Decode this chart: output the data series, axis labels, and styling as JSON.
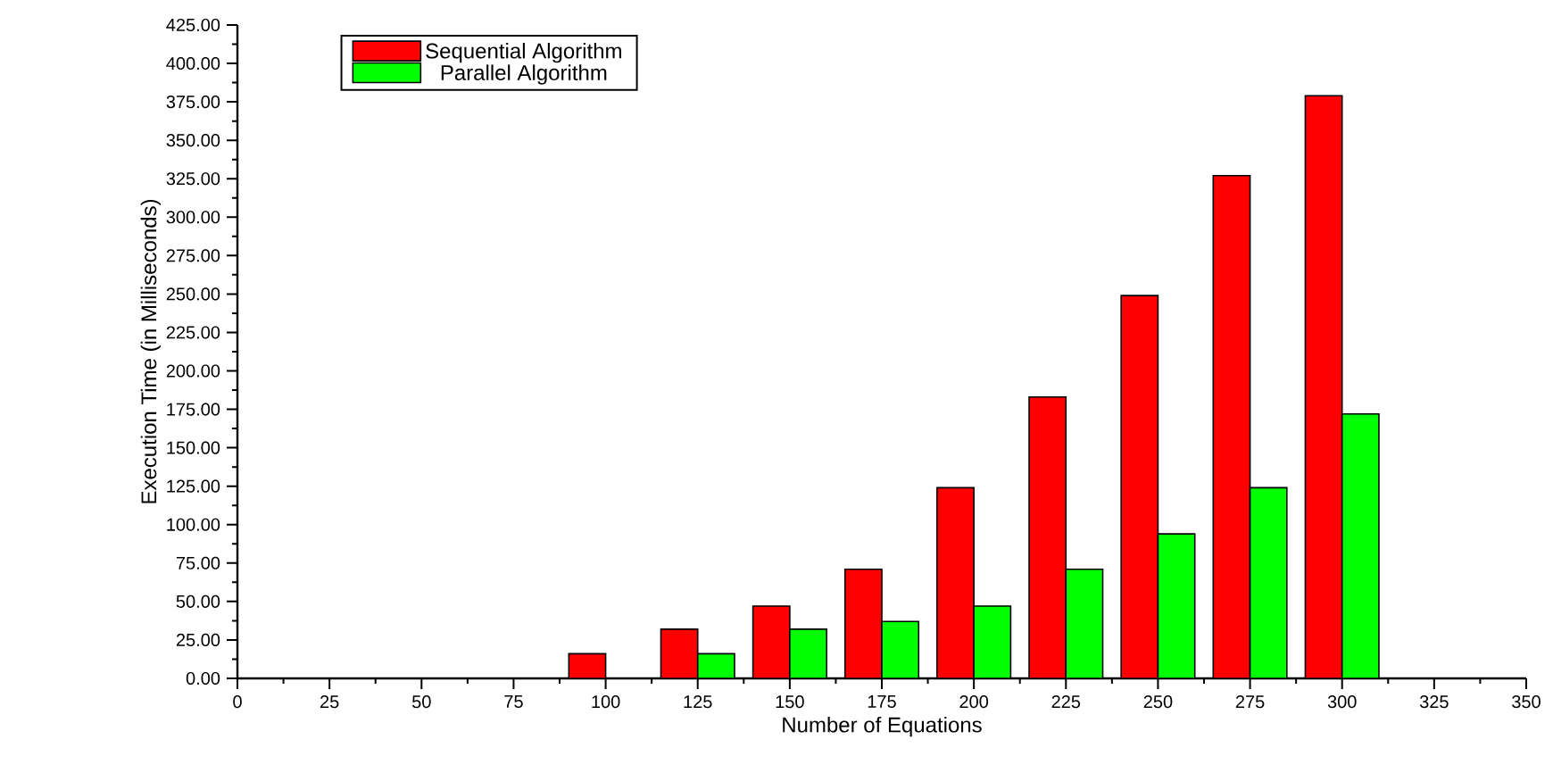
{
  "chart_data": {
    "type": "bar",
    "xlabel": "Number of Equations",
    "ylabel": "Execution Time (in Milliseconds)",
    "x": [
      100,
      125,
      150,
      175,
      200,
      225,
      250,
      275,
      300
    ],
    "series": [
      {
        "name": "Sequential Algorithm",
        "color": "#ff0000",
        "values": [
          16,
          32,
          47,
          71,
          124,
          183,
          249,
          327,
          379
        ]
      },
      {
        "name": "Parallel Algorithm",
        "color": "#00ff00",
        "values": [
          null,
          16,
          32,
          37,
          47,
          71,
          94,
          124,
          172
        ]
      }
    ],
    "xlim": [
      0,
      350
    ],
    "xticks": [
      0,
      25,
      50,
      75,
      100,
      125,
      150,
      175,
      200,
      225,
      250,
      275,
      300,
      325,
      350
    ],
    "ylim": [
      0,
      425
    ],
    "yticks": [
      {
        "value": 0,
        "label": "0.00"
      },
      {
        "value": 25,
        "label": "25.00"
      },
      {
        "value": 50,
        "label": "50.00"
      },
      {
        "value": 75,
        "label": "75.00"
      },
      {
        "value": 100,
        "label": "100.00"
      },
      {
        "value": 125,
        "label": "125.00"
      },
      {
        "value": 150,
        "label": "150.00"
      },
      {
        "value": 175,
        "label": "175.00"
      },
      {
        "value": 200,
        "label": "200.00"
      },
      {
        "value": 225,
        "label": "225.00"
      },
      {
        "value": 250,
        "label": "250.00"
      },
      {
        "value": 275,
        "label": "275.00"
      },
      {
        "value": 300,
        "label": "300.00"
      },
      {
        "value": 325,
        "label": "325.00"
      },
      {
        "value": 350,
        "label": "350.00"
      },
      {
        "value": 375,
        "label": "375.00"
      },
      {
        "value": 400,
        "label": "400.00"
      },
      {
        "value": 425,
        "label": "425.00"
      }
    ],
    "grid": false,
    "legend": "top left"
  }
}
